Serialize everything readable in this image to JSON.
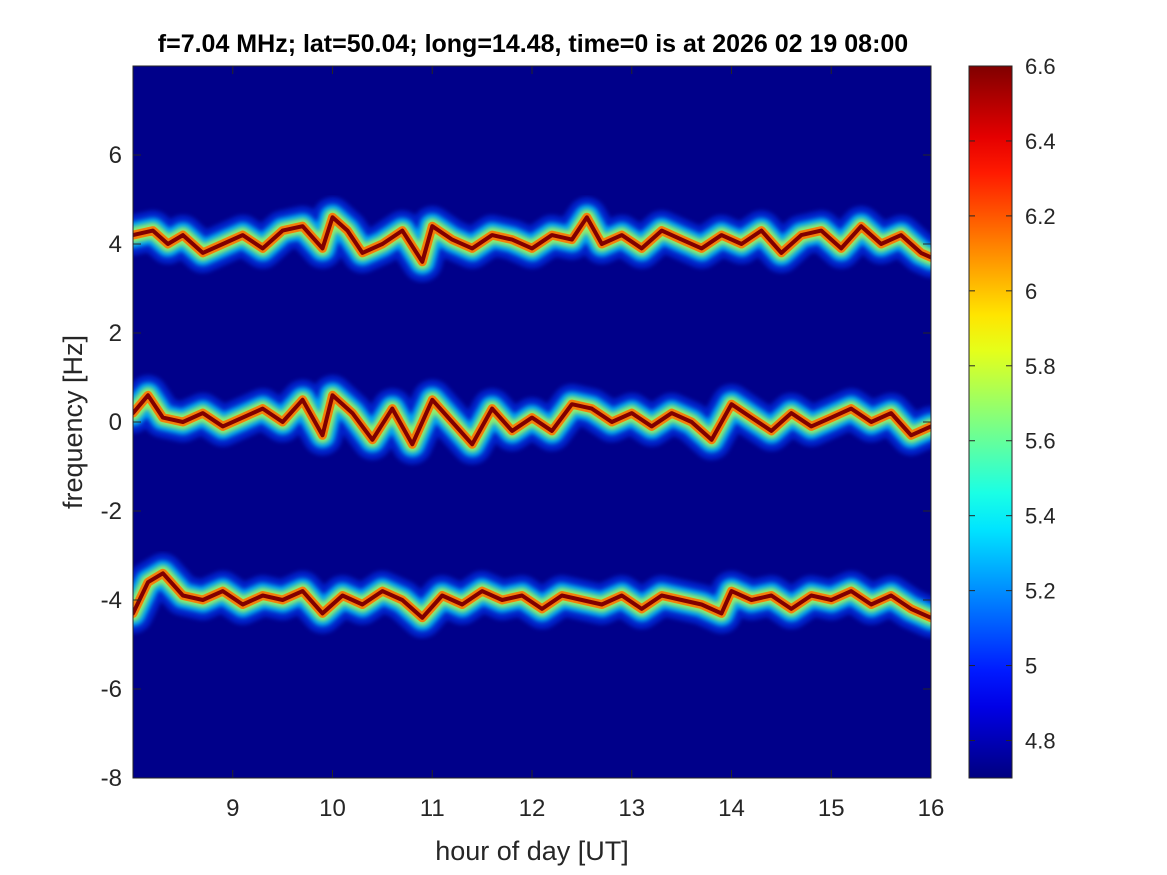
{
  "chart_data": {
    "type": "heatmap",
    "title": "f=7.04 MHz;  lat=50.04; long=14.48, time=0 is at 2026 02 19 08:00",
    "xlabel": "hour of day [UT]",
    "ylabel": "frequency [Hz]",
    "xlim": [
      8,
      16
    ],
    "ylim": [
      -8,
      8
    ],
    "x_ticks": [
      9,
      10,
      11,
      12,
      13,
      14,
      15,
      16
    ],
    "x_tick_labels": [
      "9",
      "10",
      "11",
      "12",
      "13",
      "14",
      "15",
      "16"
    ],
    "y_ticks": [
      -8,
      -6,
      -4,
      -2,
      0,
      2,
      4,
      6
    ],
    "y_tick_labels": [
      "-8",
      "-6",
      "-4",
      "-2",
      "0",
      "2",
      "4",
      "6"
    ],
    "colorbar": {
      "colormap": "jet",
      "range": [
        4.7,
        6.6
      ],
      "ticks": [
        4.8,
        5.0,
        5.2,
        5.4,
        5.6,
        5.8,
        6.0,
        6.2,
        6.4,
        6.6
      ],
      "tick_labels": [
        "4.8",
        "5",
        "5.2",
        "5.4",
        "5.6",
        "5.8",
        "6",
        "6.2",
        "6.4",
        "6.6"
      ]
    },
    "background_level": 4.72,
    "traces": [
      {
        "center_hz": 4.2,
        "points": [
          [
            8.0,
            4.2
          ],
          [
            8.2,
            4.3
          ],
          [
            8.35,
            4.0
          ],
          [
            8.5,
            4.2
          ],
          [
            8.7,
            3.8
          ],
          [
            8.9,
            4.0
          ],
          [
            9.1,
            4.2
          ],
          [
            9.3,
            3.9
          ],
          [
            9.5,
            4.3
          ],
          [
            9.7,
            4.4
          ],
          [
            9.9,
            3.9
          ],
          [
            10.0,
            4.6
          ],
          [
            10.15,
            4.3
          ],
          [
            10.3,
            3.8
          ],
          [
            10.5,
            4.0
          ],
          [
            10.7,
            4.3
          ],
          [
            10.9,
            3.6
          ],
          [
            11.0,
            4.4
          ],
          [
            11.2,
            4.1
          ],
          [
            11.4,
            3.9
          ],
          [
            11.6,
            4.2
          ],
          [
            11.8,
            4.1
          ],
          [
            12.0,
            3.9
          ],
          [
            12.2,
            4.2
          ],
          [
            12.4,
            4.1
          ],
          [
            12.55,
            4.6
          ],
          [
            12.7,
            4.0
          ],
          [
            12.9,
            4.2
          ],
          [
            13.1,
            3.9
          ],
          [
            13.3,
            4.3
          ],
          [
            13.5,
            4.1
          ],
          [
            13.7,
            3.9
          ],
          [
            13.9,
            4.2
          ],
          [
            14.1,
            4.0
          ],
          [
            14.3,
            4.3
          ],
          [
            14.5,
            3.8
          ],
          [
            14.7,
            4.2
          ],
          [
            14.9,
            4.3
          ],
          [
            15.1,
            3.9
          ],
          [
            15.3,
            4.4
          ],
          [
            15.5,
            4.0
          ],
          [
            15.7,
            4.2
          ],
          [
            15.9,
            3.8
          ],
          [
            16.0,
            3.7
          ]
        ]
      },
      {
        "center_hz": 0.0,
        "points": [
          [
            8.0,
            0.2
          ],
          [
            8.15,
            0.6
          ],
          [
            8.3,
            0.1
          ],
          [
            8.5,
            0.0
          ],
          [
            8.7,
            0.2
          ],
          [
            8.9,
            -0.1
          ],
          [
            9.1,
            0.1
          ],
          [
            9.3,
            0.3
          ],
          [
            9.5,
            0.0
          ],
          [
            9.7,
            0.5
          ],
          [
            9.9,
            -0.3
          ],
          [
            10.0,
            0.6
          ],
          [
            10.2,
            0.2
          ],
          [
            10.4,
            -0.4
          ],
          [
            10.6,
            0.3
          ],
          [
            10.8,
            -0.5
          ],
          [
            11.0,
            0.5
          ],
          [
            11.2,
            0.0
          ],
          [
            11.4,
            -0.5
          ],
          [
            11.6,
            0.3
          ],
          [
            11.8,
            -0.2
          ],
          [
            12.0,
            0.1
          ],
          [
            12.2,
            -0.2
          ],
          [
            12.4,
            0.4
          ],
          [
            12.6,
            0.3
          ],
          [
            12.8,
            0.0
          ],
          [
            13.0,
            0.2
          ],
          [
            13.2,
            -0.1
          ],
          [
            13.4,
            0.2
          ],
          [
            13.6,
            0.0
          ],
          [
            13.8,
            -0.4
          ],
          [
            14.0,
            0.4
          ],
          [
            14.2,
            0.1
          ],
          [
            14.4,
            -0.2
          ],
          [
            14.6,
            0.2
          ],
          [
            14.8,
            -0.1
          ],
          [
            15.0,
            0.1
          ],
          [
            15.2,
            0.3
          ],
          [
            15.4,
            0.0
          ],
          [
            15.6,
            0.2
          ],
          [
            15.8,
            -0.3
          ],
          [
            16.0,
            -0.1
          ]
        ]
      },
      {
        "center_hz": -4.0,
        "points": [
          [
            8.0,
            -4.3
          ],
          [
            8.15,
            -3.6
          ],
          [
            8.3,
            -3.4
          ],
          [
            8.5,
            -3.9
          ],
          [
            8.7,
            -4.0
          ],
          [
            8.9,
            -3.8
          ],
          [
            9.1,
            -4.1
          ],
          [
            9.3,
            -3.9
          ],
          [
            9.5,
            -4.0
          ],
          [
            9.7,
            -3.8
          ],
          [
            9.9,
            -4.3
          ],
          [
            10.1,
            -3.9
          ],
          [
            10.3,
            -4.1
          ],
          [
            10.5,
            -3.8
          ],
          [
            10.7,
            -4.0
          ],
          [
            10.9,
            -4.4
          ],
          [
            11.1,
            -3.9
          ],
          [
            11.3,
            -4.1
          ],
          [
            11.5,
            -3.8
          ],
          [
            11.7,
            -4.0
          ],
          [
            11.9,
            -3.9
          ],
          [
            12.1,
            -4.2
          ],
          [
            12.3,
            -3.9
          ],
          [
            12.5,
            -4.0
          ],
          [
            12.7,
            -4.1
          ],
          [
            12.9,
            -3.9
          ],
          [
            13.1,
            -4.2
          ],
          [
            13.3,
            -3.9
          ],
          [
            13.5,
            -4.0
          ],
          [
            13.7,
            -4.1
          ],
          [
            13.9,
            -4.3
          ],
          [
            14.0,
            -3.8
          ],
          [
            14.2,
            -4.0
          ],
          [
            14.4,
            -3.9
          ],
          [
            14.6,
            -4.2
          ],
          [
            14.8,
            -3.9
          ],
          [
            15.0,
            -4.0
          ],
          [
            15.2,
            -3.8
          ],
          [
            15.4,
            -4.1
          ],
          [
            15.6,
            -3.9
          ],
          [
            15.8,
            -4.2
          ],
          [
            16.0,
            -4.4
          ]
        ]
      }
    ]
  }
}
